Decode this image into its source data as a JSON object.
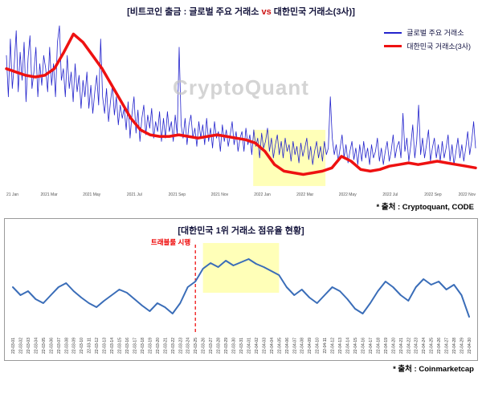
{
  "top_chart": {
    "title_left": "[비트코인 출금 : 글로벌 주요 거래소 ",
    "title_vs": "vs",
    "title_right": " 대한민국 거래소(3사)]",
    "watermark": "CryptoQuant",
    "source": "* 출처 : Cryptoquant, CODE"
  },
  "bottom_chart": {
    "title": "[대한민국 1위 거래소 점유율 현황]",
    "source": "* 출처 : Coinmarketcap"
  },
  "chart_data": [
    {
      "type": "line",
      "title": "[비트코인 출금 : 글로벌 주요 거래소 vs 대한민국 거래소(3사)]",
      "ylim": [
        0,
        1
      ],
      "grid": false,
      "legend_position": "top-right",
      "watermark": "CryptoQuant",
      "source": "* 출처 : Cryptoquant, CODE",
      "x_ticks": [
        "21 Jan",
        "2021 Mar",
        "2021 May",
        "2021 Jul",
        "2021 Sep",
        "2021 Nov",
        "2022 Jan",
        "2022 Mar",
        "2022 May",
        "2022 Jul",
        "2022 Sep",
        "2022 Nov"
      ],
      "highlight": {
        "x_start_frac": 0.526,
        "x_end_frac": 0.68,
        "y_top_frac": 0.65,
        "y_bottom_frac": 0.99,
        "color": "#ffffb8"
      },
      "series": [
        {
          "name": "글로벌 주요 거래소",
          "color": "#2323cc",
          "width": 0.8,
          "values": [
            0.8,
            0.55,
            0.9,
            0.6,
            0.75,
            0.95,
            0.58,
            0.82,
            0.65,
            0.88,
            0.52,
            0.78,
            0.92,
            0.6,
            0.7,
            0.85,
            0.55,
            0.75,
            0.62,
            0.8,
            0.72,
            0.58,
            0.85,
            0.62,
            0.75,
            0.55,
            0.88,
            0.98,
            0.65,
            0.72,
            0.55,
            0.8,
            0.6,
            0.7,
            0.52,
            0.75,
            0.58,
            0.68,
            0.48,
            0.65,
            0.55,
            0.7,
            0.48,
            0.62,
            0.45,
            0.58,
            0.68,
            0.5,
            0.9,
            0.55,
            0.45,
            0.6,
            0.4,
            0.52,
            0.62,
            0.44,
            0.55,
            0.38,
            0.5,
            0.42,
            0.48,
            0.35,
            0.52,
            0.3,
            0.45,
            0.55,
            0.33,
            0.47,
            0.28,
            0.42,
            0.5,
            0.32,
            0.44,
            0.36,
            0.48,
            0.3,
            0.4,
            0.34,
            0.46,
            0.28,
            0.42,
            0.3,
            0.46,
            0.34,
            0.4,
            0.28,
            0.44,
            0.32,
            0.85,
            0.38,
            0.3,
            0.42,
            0.26,
            0.38,
            0.44,
            0.3,
            0.36,
            0.25,
            0.4,
            0.3,
            0.38,
            0.26,
            0.42,
            0.28,
            0.36,
            0.24,
            0.4,
            0.3,
            0.34,
            0.22,
            0.38,
            0.28,
            0.35,
            0.25,
            0.32,
            0.4,
            0.26,
            0.34,
            0.22,
            0.3,
            0.34,
            0.22,
            0.36,
            0.26,
            0.32,
            0.2,
            0.35,
            0.25,
            0.3,
            0.18,
            0.33,
            0.24,
            0.28,
            0.36,
            0.22,
            0.3,
            0.18,
            0.26,
            0.32,
            0.2,
            0.28,
            0.18,
            0.3,
            0.22,
            0.26,
            0.16,
            0.28,
            0.2,
            0.25,
            0.15,
            0.27,
            0.19,
            0.24,
            0.3,
            0.17,
            0.25,
            0.14,
            0.22,
            0.28,
            0.18,
            0.25,
            0.16,
            0.28,
            0.2,
            0.24,
            0.55,
            0.3,
            0.2,
            0.26,
            0.16,
            0.24,
            0.32,
            0.18,
            0.26,
            0.15,
            0.22,
            0.28,
            0.17,
            0.24,
            0.14,
            0.26,
            0.16,
            0.28,
            0.18,
            0.24,
            0.14,
            0.26,
            0.18,
            0.22,
            0.3,
            0.16,
            0.24,
            0.14,
            0.22,
            0.28,
            0.16,
            0.22,
            0.32,
            0.18,
            0.25,
            0.28,
            0.18,
            0.45,
            0.22,
            0.3,
            0.16,
            0.26,
            0.38,
            0.18,
            0.28,
            0.5,
            0.2,
            0.3,
            0.18,
            0.26,
            0.35,
            0.16,
            0.24,
            0.3,
            0.18,
            0.26,
            0.16,
            0.28,
            0.18,
            0.24,
            0.32,
            0.16,
            0.26,
            0.14,
            0.22,
            0.3,
            0.18,
            0.26,
            0.16,
            0.24,
            0.34,
            0.2,
            0.28,
            0.4,
            0.24
          ]
        },
        {
          "name": "대한민국 거래소(3사)",
          "color": "#ee1111",
          "width": 3.5,
          "values": [
            0.72,
            0.7,
            0.68,
            0.67,
            0.68,
            0.72,
            0.82,
            0.93,
            0.88,
            0.8,
            0.72,
            0.62,
            0.52,
            0.42,
            0.35,
            0.32,
            0.31,
            0.31,
            0.32,
            0.31,
            0.3,
            0.31,
            0.32,
            0.31,
            0.3,
            0.29,
            0.27,
            0.22,
            0.14,
            0.1,
            0.09,
            0.08,
            0.09,
            0.1,
            0.12,
            0.19,
            0.16,
            0.11,
            0.1,
            0.11,
            0.13,
            0.14,
            0.15,
            0.14,
            0.15,
            0.16,
            0.15,
            0.14,
            0.13,
            0.12
          ]
        }
      ]
    },
    {
      "type": "line",
      "title": "[대한민국 1위 거래소 점유율 현황]",
      "ylim": [
        0,
        1
      ],
      "grid": false,
      "source": "* 출처 : Coinmarketcap",
      "annotation": {
        "label": "트래블룰 시행",
        "x_index": 24,
        "x_date": "22-03-25",
        "color": "#ee0000",
        "style": "dashed-vertical"
      },
      "highlight": {
        "x_start_index": 25,
        "x_end_index": 35,
        "y_top_frac": 0.0,
        "y_bottom_frac": 0.52,
        "color": "#ffffb8"
      },
      "x": [
        "22-03-01",
        "22-03-02",
        "22-03-03",
        "22-03-04",
        "22-03-05",
        "22-03-06",
        "22-03-07",
        "22-03-08",
        "22-03-09",
        "22-03-10",
        "22-03-11",
        "22-03-12",
        "22-03-13",
        "22-03-14",
        "22-03-15",
        "22-03-16",
        "22-03-17",
        "22-03-18",
        "22-03-19",
        "22-03-20",
        "22-03-21",
        "22-03-22",
        "22-03-23",
        "22-03-24",
        "22-03-25",
        "22-03-26",
        "22-03-27",
        "22-03-28",
        "22-03-29",
        "22-03-30",
        "22-03-31",
        "22-04-01",
        "22-04-02",
        "22-04-03",
        "22-04-04",
        "22-04-05",
        "22-04-06",
        "22-04-07",
        "22-04-08",
        "22-04-09",
        "22-04-10",
        "22-04-11",
        "22-04-12",
        "22-04-13",
        "22-04-14",
        "22-04-15",
        "22-04-16",
        "22-04-17",
        "22-04-18",
        "22-04-19",
        "22-04-20",
        "22-04-21",
        "22-04-22",
        "22-04-23",
        "22-04-24",
        "22-04-25",
        "22-04-26",
        "22-04-27",
        "22-04-28",
        "22-04-29",
        "22-04-30"
      ],
      "series": [
        {
          "name": "대한민국 1위 거래소 점유율",
          "color": "#3a6db8",
          "width": 2,
          "values": [
            0.55,
            0.45,
            0.5,
            0.4,
            0.35,
            0.45,
            0.55,
            0.6,
            0.5,
            0.42,
            0.35,
            0.3,
            0.38,
            0.45,
            0.52,
            0.48,
            0.4,
            0.32,
            0.25,
            0.35,
            0.3,
            0.22,
            0.35,
            0.55,
            0.62,
            0.78,
            0.85,
            0.8,
            0.88,
            0.82,
            0.86,
            0.9,
            0.84,
            0.8,
            0.75,
            0.7,
            0.55,
            0.45,
            0.52,
            0.42,
            0.35,
            0.45,
            0.55,
            0.5,
            0.4,
            0.28,
            0.22,
            0.35,
            0.5,
            0.62,
            0.55,
            0.45,
            0.38,
            0.55,
            0.65,
            0.58,
            0.62,
            0.52,
            0.58,
            0.45,
            0.18
          ]
        }
      ]
    }
  ]
}
